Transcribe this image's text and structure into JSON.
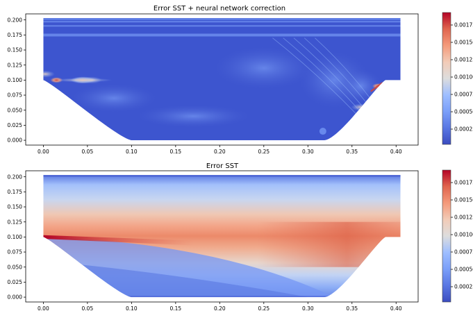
{
  "chart_data": [
    {
      "type": "heatmap",
      "title": "Error SST + neural network correction",
      "xlabel": "",
      "ylabel": "",
      "x_ticks": [
        "0.00",
        "0.05",
        "0.10",
        "0.15",
        "0.20",
        "0.25",
        "0.30",
        "0.35",
        "0.40"
      ],
      "x_tick_values": [
        0.0,
        0.05,
        0.1,
        0.15,
        0.2,
        0.25,
        0.3,
        0.35,
        0.4
      ],
      "y_ticks": [
        "0.000",
        "0.025",
        "0.050",
        "0.075",
        "0.100",
        "0.125",
        "0.150",
        "0.175",
        "0.200"
      ],
      "y_tick_values": [
        0.0,
        0.025,
        0.05,
        0.075,
        0.1,
        0.125,
        0.15,
        0.175,
        0.2
      ],
      "xlim": [
        -0.02,
        0.425
      ],
      "ylim": [
        -0.008,
        0.21
      ],
      "colorbar": {
        "ticks": [
          "0.00025",
          "0.00050",
          "0.00075",
          "0.00100",
          "0.00125",
          "0.00150",
          "0.00175"
        ],
        "tick_values": [
          0.00025,
          0.0005,
          0.00075,
          0.001,
          0.00125,
          0.0015,
          0.00175
        ],
        "range": [
          3e-05,
          0.00193
        ],
        "colormap": "coolwarm"
      },
      "hotspots": [
        {
          "x": 0.015,
          "y": 0.1,
          "level": 0.95
        },
        {
          "x": 0.045,
          "y": 0.1,
          "level": 0.55
        },
        {
          "x": 0.055,
          "y": 0.1,
          "level": 0.5
        },
        {
          "x": 0.38,
          "y": 0.09,
          "level": 0.85
        },
        {
          "x": 0.36,
          "y": 0.055,
          "level": 0.45
        },
        {
          "x": 0.002,
          "y": 0.11,
          "level": 0.45
        }
      ]
    },
    {
      "type": "heatmap",
      "title": "Error SST",
      "xlabel": "",
      "ylabel": "",
      "x_ticks": [
        "0.00",
        "0.05",
        "0.10",
        "0.15",
        "0.20",
        "0.25",
        "0.30",
        "0.35",
        "0.40"
      ],
      "x_tick_values": [
        0.0,
        0.05,
        0.1,
        0.15,
        0.2,
        0.25,
        0.3,
        0.35,
        0.4
      ],
      "y_ticks": [
        "0.000",
        "0.025",
        "0.050",
        "0.075",
        "0.100",
        "0.125",
        "0.150",
        "0.175",
        "0.200"
      ],
      "y_tick_values": [
        0.0,
        0.025,
        0.05,
        0.075,
        0.1,
        0.125,
        0.15,
        0.175,
        0.2
      ],
      "xlim": [
        -0.02,
        0.425
      ],
      "ylim": [
        -0.008,
        0.21
      ],
      "colorbar": {
        "ticks": [
          "0.00025",
          "0.00050",
          "0.00075",
          "0.00100",
          "0.00125",
          "0.00150",
          "0.00175"
        ],
        "tick_values": [
          0.00025,
          0.0005,
          0.00075,
          0.001,
          0.00125,
          0.0015,
          0.00175
        ],
        "range": [
          3e-05,
          0.00193
        ],
        "colormap": "coolwarm"
      },
      "band": {
        "center_y": 0.098,
        "peak_level": 0.8,
        "hot_x": 0.015,
        "hot_level": 0.98
      }
    }
  ],
  "colors": {
    "cool": "#3b4cc0",
    "mid": "#dddddd",
    "warm": "#b40426"
  }
}
